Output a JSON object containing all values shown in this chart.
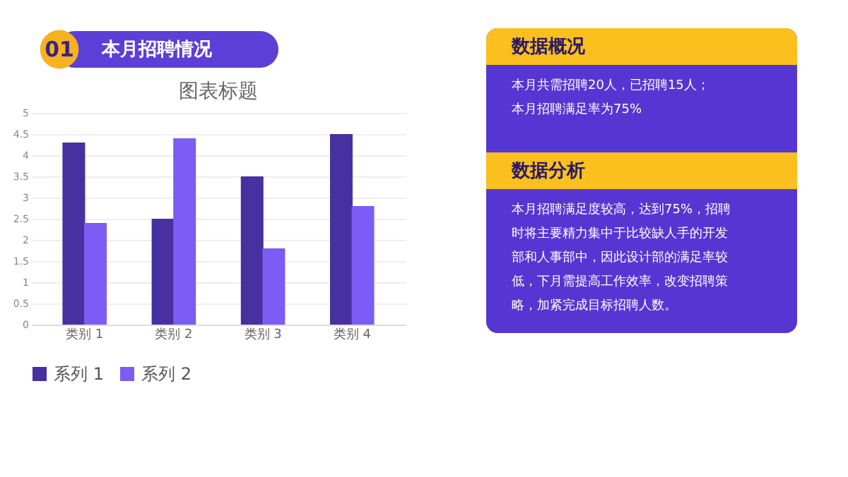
{
  "chart_data": [
    {
      "type": "bar",
      "title": "图表标题",
      "annotations": [
        "01",
        "本月招聘情况"
      ],
      "categories": [
        "类别 1",
        "类别 2",
        "类别 3",
        "类别 4"
      ],
      "series": [
        {
          "name": "系列 1",
          "color": "#47309f",
          "values": [
            4.3,
            2.5,
            3.5,
            4.5
          ]
        },
        {
          "name": "系列 2",
          "color": "#7b5cf5",
          "values": [
            2.4,
            4.4,
            1.8,
            2.8
          ]
        }
      ],
      "ylim": [
        0,
        5
      ],
      "yticks": [
        0,
        0.5,
        1,
        1.5,
        2,
        2.5,
        3,
        3.5,
        4,
        4.5,
        5
      ],
      "grid": "y",
      "legend": "bottom"
    },
    {
      "type": "other",
      "title": "数据概况",
      "annotations": [
        "本月共需招聘20人，已招聘15人；",
        "本月招聘满足率为75%"
      ]
    },
    {
      "type": "other",
      "title": "数据分析",
      "annotations": [
        "本月招聘满足度较高，达到75%，招聘",
        "时将主要精力集中于比较缺人手的开发",
        "部和人事部中，因此设计部的满足率较",
        "低，下月需提高工作效率，改变招聘策",
        "略，加紧完成目标招聘人数。"
      ]
    }
  ]
}
